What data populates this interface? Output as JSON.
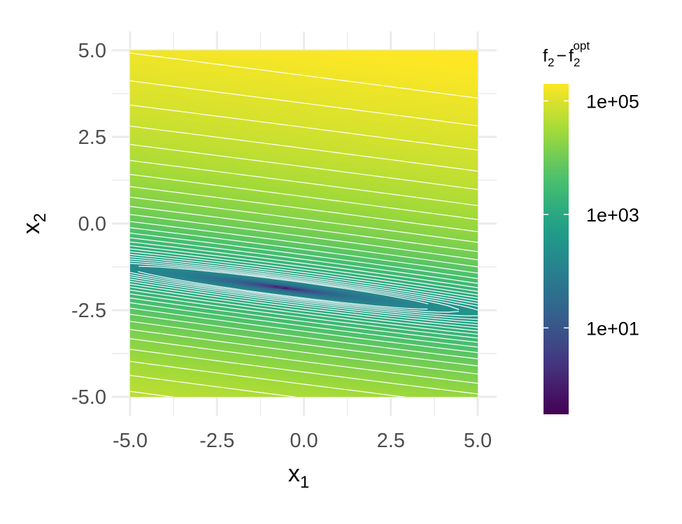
{
  "chart_data": {
    "type": "heatmap",
    "title": "",
    "x_label": {
      "main": "x",
      "sub": "1"
    },
    "y_label": {
      "main": "x",
      "sub": "2"
    },
    "xlim": [
      -5,
      5
    ],
    "ylim": [
      -5,
      5
    ],
    "x_ticks": [
      -5.0,
      -2.5,
      0.0,
      2.5,
      5.0
    ],
    "x_tick_labels": [
      "-5.0",
      "-2.5",
      "0.0",
      "2.5",
      "5.0"
    ],
    "y_ticks": [
      5.0,
      2.5,
      0.0,
      -2.5,
      -5.0
    ],
    "y_tick_labels": [
      "5.0",
      "2.5",
      "0.0",
      "-2.5",
      "-5.0"
    ],
    "grid": true,
    "contour_color": "#ffffff",
    "color_scale": {
      "name": "viridis",
      "scale": "log10",
      "min": 0.3,
      "max": 200000,
      "colors": [
        "#440154",
        "#46327e",
        "#365c8d",
        "#277f8e",
        "#1fa187",
        "#4ac16d",
        "#a0da39",
        "#fde725"
      ]
    },
    "optimum": {
      "x1": -0.6,
      "x2": -1.85
    },
    "legend": {
      "position": "right",
      "title": {
        "main": "f",
        "sub": "2",
        "minus": "−",
        "main2": "f",
        "sub2": "2",
        "sup2": "opt"
      },
      "breaks": [
        100000,
        1000,
        10
      ],
      "labels": [
        "1e+05",
        "1e+03",
        "1e+01"
      ]
    }
  }
}
